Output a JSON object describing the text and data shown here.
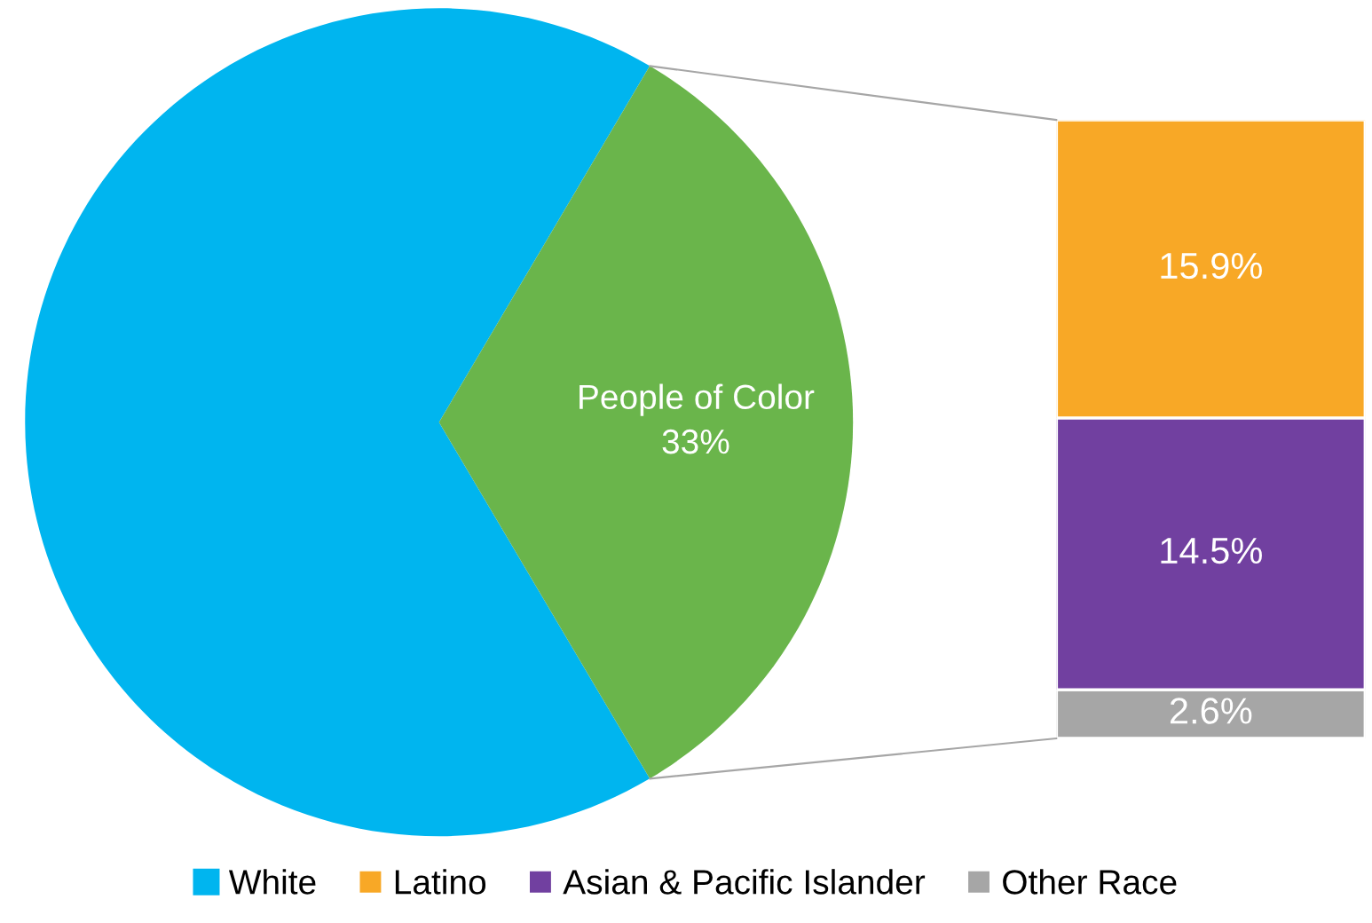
{
  "chart_data": [
    {
      "type": "pie",
      "categories": [
        "White",
        "People of Color"
      ],
      "values": [
        67,
        33
      ],
      "colors": [
        "#00b5ef",
        "#6ab54b"
      ],
      "value_labels": [
        null,
        "33%"
      ],
      "legend": "bottom"
    },
    {
      "type": "bar",
      "stacked": true,
      "categories": [
        null
      ],
      "legend": "bottom",
      "series": [
        {
          "name": "Other Race",
          "color": "#a6a6a6",
          "values": [
            2.6
          ],
          "value_labels": [
            "2.6%"
          ]
        },
        {
          "name": "Asian & Pacific Islander",
          "color": "#7140a0",
          "values": [
            14.5
          ],
          "value_labels": [
            "14.5%"
          ]
        },
        {
          "name": "Latino",
          "color": "#f8a826",
          "values": [
            15.9
          ],
          "value_labels": [
            "15.9%"
          ]
        }
      ]
    }
  ]
}
